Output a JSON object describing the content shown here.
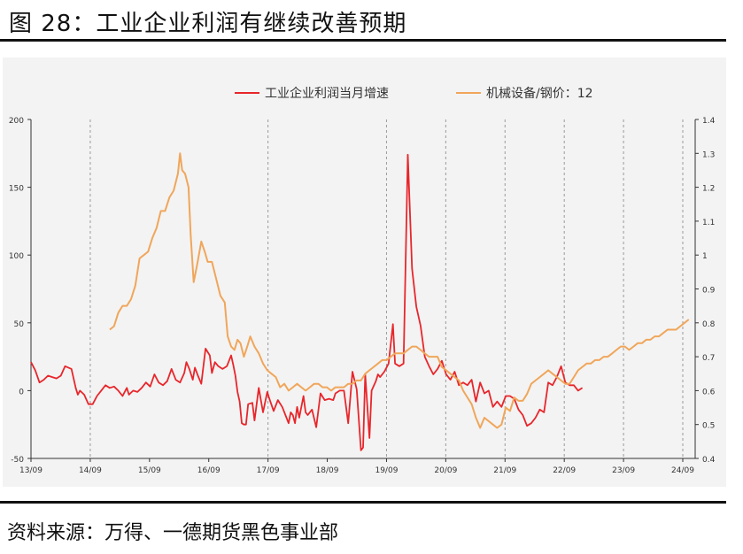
{
  "figure": {
    "title": "图 28：工业企业利润有继续改善预期",
    "source": "资料来源：万得、一德期货黑色事业部"
  },
  "colors": {
    "profit": "#e8262b",
    "ratio": "#f0a65a",
    "axis": "#333333",
    "vline": "#9a9a9a",
    "panel": "#f3f3f3"
  },
  "chart_data": {
    "type": "line",
    "title": "",
    "x_ticks": [
      "13/09",
      "14/09",
      "15/09",
      "16/09",
      "17/09",
      "18/09",
      "19/09",
      "20/09",
      "21/09",
      "22/09",
      "23/09",
      "24/09"
    ],
    "vlines_at": [
      "14/09",
      "17/09",
      "19/09",
      "20/09",
      "21/09",
      "22/09",
      "23/09",
      "24/09"
    ],
    "y_left": {
      "ticks": [
        "200",
        "150",
        "100",
        "50",
        "0",
        "-50"
      ],
      "range": [
        -50,
        200
      ]
    },
    "y_right": {
      "ticks": [
        "1.4",
        "1.3",
        "1.2",
        "1.1",
        "1",
        "0.9",
        "0.8",
        "0.7",
        "0.6",
        "0.5",
        "0.4"
      ],
      "range": [
        0.4,
        1.4
      ]
    },
    "series": [
      {
        "name": "工业企业利润当月增速",
        "axis": "left",
        "points": [
          [
            0.0,
            21
          ],
          [
            0.1,
            15
          ],
          [
            0.2,
            6
          ],
          [
            0.3,
            8
          ],
          [
            0.4,
            11
          ],
          [
            0.5,
            10
          ],
          [
            0.6,
            9
          ],
          [
            0.7,
            11
          ],
          [
            0.8,
            18
          ],
          [
            0.95,
            16
          ],
          [
            1.05,
            2
          ],
          [
            1.1,
            -3
          ],
          [
            1.15,
            0
          ],
          [
            1.25,
            -3
          ],
          [
            1.35,
            -10
          ],
          [
            1.45,
            -10
          ],
          [
            1.55,
            -4
          ],
          [
            1.65,
            0
          ],
          [
            1.75,
            4
          ],
          [
            1.85,
            2
          ],
          [
            1.95,
            3
          ],
          [
            2.05,
            0
          ],
          [
            2.15,
            -4
          ],
          [
            2.25,
            2
          ],
          [
            2.3,
            -3
          ],
          [
            2.4,
            0
          ],
          [
            2.5,
            -1
          ],
          [
            2.6,
            2
          ],
          [
            2.7,
            6
          ],
          [
            2.8,
            3
          ],
          [
            2.9,
            12
          ],
          [
            3.0,
            6
          ],
          [
            3.1,
            4
          ],
          [
            3.2,
            7
          ],
          [
            3.3,
            16
          ],
          [
            3.4,
            8
          ],
          [
            3.5,
            6
          ],
          [
            3.6,
            13
          ],
          [
            3.65,
            21
          ],
          [
            3.72,
            16
          ],
          [
            3.8,
            8
          ],
          [
            3.85,
            17
          ],
          [
            3.92,
            11
          ],
          [
            4.0,
            5
          ],
          [
            4.1,
            31
          ],
          [
            4.2,
            26
          ],
          [
            4.25,
            13
          ],
          [
            4.32,
            21
          ],
          [
            4.4,
            18
          ],
          [
            4.5,
            16
          ],
          [
            4.6,
            18
          ],
          [
            4.7,
            26
          ],
          [
            4.75,
            19
          ],
          [
            4.8,
            11
          ],
          [
            4.85,
            -1
          ],
          [
            4.9,
            -8
          ],
          [
            4.95,
            -24
          ],
          [
            5.0,
            -25
          ],
          [
            5.05,
            -25
          ],
          [
            5.1,
            -10
          ],
          [
            5.2,
            -9
          ],
          [
            5.25,
            -22
          ],
          [
            5.35,
            2
          ],
          [
            5.45,
            -16
          ],
          [
            5.55,
            -1
          ],
          [
            5.6,
            -6
          ],
          [
            5.7,
            -15
          ],
          [
            5.8,
            -7
          ],
          [
            5.9,
            -12
          ],
          [
            6.0,
            -20
          ],
          [
            6.05,
            -24
          ],
          [
            6.1,
            -16
          ],
          [
            6.15,
            -18
          ],
          [
            6.2,
            -24
          ],
          [
            6.25,
            -12
          ],
          [
            6.3,
            -20
          ],
          [
            6.4,
            -4
          ],
          [
            6.45,
            -16
          ],
          [
            6.5,
            -18
          ],
          [
            6.6,
            -14
          ],
          [
            6.7,
            -27
          ],
          [
            6.8,
            -2
          ],
          [
            6.9,
            -7
          ],
          [
            7.0,
            -6
          ],
          [
            7.1,
            -7
          ],
          [
            7.15,
            -2
          ],
          [
            7.25,
            0
          ],
          [
            7.35,
            0
          ],
          [
            7.45,
            -24
          ],
          [
            7.55,
            14
          ],
          [
            7.65,
            1
          ],
          [
            7.75,
            -44
          ],
          [
            7.8,
            -42
          ],
          [
            7.85,
            12
          ],
          [
            7.95,
            -35
          ],
          [
            8.0,
            0
          ],
          [
            8.1,
            7
          ],
          [
            8.15,
            12
          ],
          [
            8.2,
            10
          ],
          [
            8.3,
            14
          ],
          [
            8.4,
            20
          ],
          [
            8.5,
            49
          ],
          [
            8.55,
            20
          ],
          [
            8.65,
            18
          ],
          [
            8.75,
            20
          ],
          [
            8.85,
            174
          ],
          [
            8.95,
            90
          ],
          [
            9.05,
            62
          ],
          [
            9.15,
            48
          ],
          [
            9.25,
            25
          ],
          [
            9.35,
            18
          ],
          [
            9.45,
            12
          ],
          [
            9.55,
            16
          ],
          [
            9.65,
            22
          ],
          [
            9.75,
            12
          ],
          [
            9.85,
            8
          ],
          [
            9.95,
            14
          ],
          [
            10.05,
            4
          ],
          [
            10.15,
            6
          ],
          [
            10.25,
            4
          ],
          [
            10.35,
            8
          ],
          [
            10.45,
            -8
          ],
          [
            10.55,
            6
          ],
          [
            10.65,
            -2
          ],
          [
            10.75,
            0
          ],
          [
            10.85,
            -12
          ],
          [
            10.95,
            -8
          ],
          [
            11.05,
            -12
          ],
          [
            11.15,
            -4
          ],
          [
            11.25,
            -4
          ],
          [
            11.35,
            -6
          ],
          [
            11.45,
            -14
          ],
          [
            11.55,
            -18
          ],
          [
            11.65,
            -26
          ],
          [
            11.75,
            -24
          ],
          [
            11.85,
            -20
          ],
          [
            11.95,
            -14
          ],
          [
            12.05,
            -16
          ],
          [
            12.15,
            6
          ],
          [
            12.25,
            4
          ],
          [
            12.35,
            10
          ],
          [
            12.45,
            18
          ],
          [
            12.55,
            6
          ],
          [
            12.65,
            4
          ],
          [
            12.75,
            4
          ],
          [
            12.85,
            0
          ],
          [
            12.95,
            2
          ]
        ]
      },
      {
        "name": "机械设备/钢价：12",
        "axis": "right",
        "points": [
          [
            1.85,
            0.78
          ],
          [
            1.95,
            0.79
          ],
          [
            2.05,
            0.83
          ],
          [
            2.15,
            0.85
          ],
          [
            2.25,
            0.85
          ],
          [
            2.35,
            0.87
          ],
          [
            2.45,
            0.91
          ],
          [
            2.55,
            0.99
          ],
          [
            2.65,
            1.0
          ],
          [
            2.75,
            1.01
          ],
          [
            2.85,
            1.05
          ],
          [
            2.95,
            1.08
          ],
          [
            3.05,
            1.13
          ],
          [
            3.15,
            1.13
          ],
          [
            3.25,
            1.17
          ],
          [
            3.35,
            1.19
          ],
          [
            3.45,
            1.24
          ],
          [
            3.5,
            1.3
          ],
          [
            3.55,
            1.25
          ],
          [
            3.62,
            1.24
          ],
          [
            3.7,
            1.2
          ],
          [
            3.75,
            1.06
          ],
          [
            3.82,
            0.92
          ],
          [
            3.9,
            0.97
          ],
          [
            4.0,
            1.04
          ],
          [
            4.08,
            1.01
          ],
          [
            4.15,
            0.98
          ],
          [
            4.25,
            0.98
          ],
          [
            4.35,
            0.93
          ],
          [
            4.45,
            0.88
          ],
          [
            4.55,
            0.86
          ],
          [
            4.62,
            0.76
          ],
          [
            4.7,
            0.73
          ],
          [
            4.78,
            0.72
          ],
          [
            4.85,
            0.75
          ],
          [
            4.92,
            0.74
          ],
          [
            5.0,
            0.7
          ],
          [
            5.08,
            0.73
          ],
          [
            5.15,
            0.76
          ],
          [
            5.25,
            0.73
          ],
          [
            5.35,
            0.71
          ],
          [
            5.45,
            0.68
          ],
          [
            5.55,
            0.66
          ],
          [
            5.65,
            0.65
          ],
          [
            5.75,
            0.64
          ],
          [
            5.85,
            0.61
          ],
          [
            5.95,
            0.62
          ],
          [
            6.05,
            0.6
          ],
          [
            6.15,
            0.61
          ],
          [
            6.25,
            0.62
          ],
          [
            6.35,
            0.61
          ],
          [
            6.45,
            0.6
          ],
          [
            6.55,
            0.61
          ],
          [
            6.65,
            0.62
          ],
          [
            6.75,
            0.62
          ],
          [
            6.85,
            0.61
          ],
          [
            6.95,
            0.61
          ],
          [
            7.05,
            0.6
          ],
          [
            7.15,
            0.61
          ],
          [
            7.25,
            0.61
          ],
          [
            7.35,
            0.61
          ],
          [
            7.45,
            0.62
          ],
          [
            7.55,
            0.62
          ],
          [
            7.65,
            0.63
          ],
          [
            7.75,
            0.63
          ],
          [
            7.85,
            0.65
          ],
          [
            7.95,
            0.66
          ],
          [
            8.05,
            0.67
          ],
          [
            8.15,
            0.68
          ],
          [
            8.25,
            0.69
          ],
          [
            8.35,
            0.69
          ],
          [
            8.45,
            0.7
          ],
          [
            8.55,
            0.71
          ],
          [
            8.65,
            0.71
          ],
          [
            8.75,
            0.71
          ],
          [
            8.85,
            0.72
          ],
          [
            8.95,
            0.73
          ],
          [
            9.05,
            0.73
          ],
          [
            9.15,
            0.72
          ],
          [
            9.25,
            0.71
          ],
          [
            9.35,
            0.7
          ],
          [
            9.45,
            0.7
          ],
          [
            9.55,
            0.7
          ],
          [
            9.65,
            0.67
          ],
          [
            9.75,
            0.66
          ],
          [
            9.85,
            0.65
          ],
          [
            9.95,
            0.64
          ],
          [
            10.05,
            0.63
          ],
          [
            10.15,
            0.6
          ],
          [
            10.25,
            0.58
          ],
          [
            10.35,
            0.56
          ],
          [
            10.45,
            0.52
          ],
          [
            10.55,
            0.49
          ],
          [
            10.65,
            0.52
          ],
          [
            10.75,
            0.51
          ],
          [
            10.85,
            0.5
          ],
          [
            10.95,
            0.49
          ],
          [
            11.05,
            0.5
          ],
          [
            11.15,
            0.55
          ],
          [
            11.25,
            0.54
          ],
          [
            11.35,
            0.58
          ],
          [
            11.45,
            0.57
          ],
          [
            11.55,
            0.57
          ],
          [
            11.65,
            0.59
          ],
          [
            11.75,
            0.62
          ],
          [
            11.85,
            0.63
          ],
          [
            11.95,
            0.64
          ],
          [
            12.05,
            0.65
          ],
          [
            12.15,
            0.66
          ],
          [
            12.25,
            0.65
          ],
          [
            12.35,
            0.64
          ],
          [
            12.45,
            0.63
          ],
          [
            12.55,
            0.62
          ],
          [
            12.65,
            0.62
          ],
          [
            12.75,
            0.64
          ],
          [
            12.85,
            0.66
          ],
          [
            12.95,
            0.67
          ],
          [
            13.05,
            0.68
          ],
          [
            13.15,
            0.68
          ],
          [
            13.25,
            0.69
          ],
          [
            13.35,
            0.69
          ],
          [
            13.45,
            0.7
          ],
          [
            13.55,
            0.7
          ],
          [
            13.65,
            0.71
          ],
          [
            13.75,
            0.72
          ],
          [
            13.85,
            0.73
          ],
          [
            13.95,
            0.73
          ],
          [
            14.05,
            0.72
          ],
          [
            14.15,
            0.73
          ],
          [
            14.25,
            0.74
          ],
          [
            14.35,
            0.74
          ],
          [
            14.45,
            0.75
          ],
          [
            14.55,
            0.75
          ],
          [
            14.65,
            0.76
          ],
          [
            14.75,
            0.76
          ],
          [
            14.85,
            0.77
          ],
          [
            14.95,
            0.78
          ],
          [
            15.05,
            0.78
          ],
          [
            15.15,
            0.78
          ],
          [
            15.25,
            0.79
          ],
          [
            15.35,
            0.8
          ],
          [
            15.45,
            0.81
          ]
        ]
      }
    ]
  }
}
